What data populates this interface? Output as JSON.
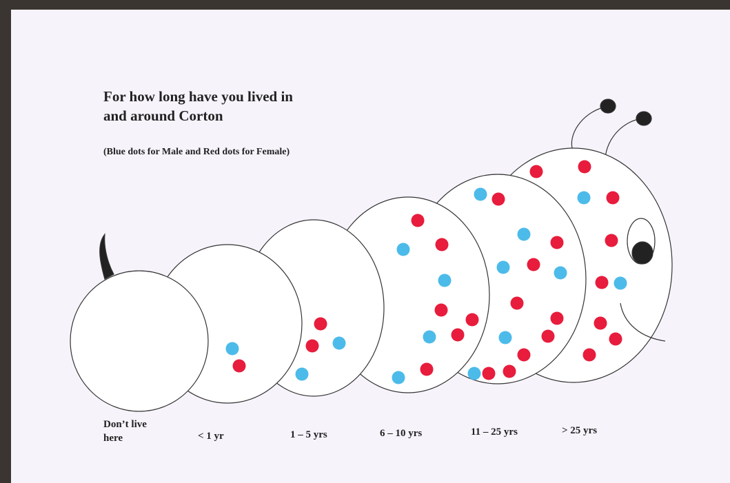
{
  "title": [
    "For how long have you lived in",
    "and around Corton"
  ],
  "subtitle": "(Blue dots for Male and Red dots for Female)",
  "segments": [
    [
      "Don’t live",
      "here"
    ],
    [
      "< 1 yr"
    ],
    [
      "1 – 5 yrs"
    ],
    [
      "6 – 10 yrs"
    ],
    [
      "11 – 25 yrs"
    ],
    [
      "> 25 yrs"
    ]
  ]
}
